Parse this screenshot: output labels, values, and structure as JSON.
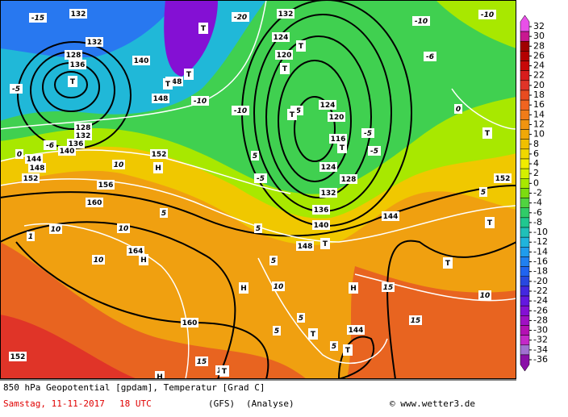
{
  "caption": {
    "line1": "850 hPa Geopotential [gpdam], Temperatur [Grad C]",
    "date": "Samstag, 11-11-2017",
    "time": "18 UTC",
    "model": "(GFS)",
    "run": "(Analyse)",
    "credit": "© www.wetter3.de"
  },
  "legend": {
    "ticks": [
      32,
      30,
      28,
      26,
      24,
      22,
      20,
      18,
      16,
      14,
      12,
      10,
      8,
      6,
      4,
      2,
      0,
      -2,
      -4,
      -6,
      -8,
      -10,
      -12,
      -14,
      -16,
      -18,
      -20,
      -22,
      -24,
      -26,
      -28,
      -30,
      -32,
      -34,
      -36
    ],
    "colors": [
      "#e850e8",
      "#c81890",
      "#a00000",
      "#b40000",
      "#c80808",
      "#d81c1c",
      "#e03428",
      "#e84c20",
      "#f06420",
      "#f07c18",
      "#f09410",
      "#f0a808",
      "#f0c000",
      "#f0d800",
      "#f0ec00",
      "#d4f000",
      "#a8e800",
      "#7cdc10",
      "#50d440",
      "#30cc68",
      "#20c890",
      "#20c0b8",
      "#20b4dc",
      "#209cec",
      "#2080f0",
      "#2064f0",
      "#2848e0",
      "#4428e0",
      "#6418e0",
      "#8410d4",
      "#a010c4",
      "#b410b4",
      "#c428c8",
      "#a070d0",
      "#8a10a8"
    ]
  },
  "map_labels": [
    {
      "text": "132",
      "kind": "pressure"
    },
    {
      "text": "132",
      "kind": "pressure"
    },
    {
      "text": "128",
      "kind": "pressure"
    },
    {
      "text": "136",
      "kind": "pressure"
    },
    {
      "text": "128",
      "kind": "pressure"
    },
    {
      "text": "132",
      "kind": "pressure"
    },
    {
      "text": "136",
      "kind": "pressure"
    },
    {
      "text": "140",
      "kind": "pressure"
    },
    {
      "text": "144",
      "kind": "pressure"
    },
    {
      "text": "148",
      "kind": "pressure"
    },
    {
      "text": "152",
      "kind": "pressure"
    },
    {
      "text": "152",
      "kind": "pressure"
    },
    {
      "text": "156",
      "kind": "pressure"
    },
    {
      "text": "160",
      "kind": "pressure"
    },
    {
      "text": "164",
      "kind": "pressure"
    },
    {
      "text": "160",
      "kind": "pressure"
    },
    {
      "text": "152",
      "kind": "pressure"
    },
    {
      "text": "140",
      "kind": "pressure"
    },
    {
      "text": "148",
      "kind": "pressure"
    },
    {
      "text": "148",
      "kind": "pressure"
    },
    {
      "text": "132",
      "kind": "pressure"
    },
    {
      "text": "124",
      "kind": "pressure"
    },
    {
      "text": "120",
      "kind": "pressure"
    },
    {
      "text": "124",
      "kind": "pressure"
    },
    {
      "text": "120",
      "kind": "pressure"
    },
    {
      "text": "116",
      "kind": "pressure"
    },
    {
      "text": "124",
      "kind": "pressure"
    },
    {
      "text": "128",
      "kind": "pressure"
    },
    {
      "text": "132",
      "kind": "pressure"
    },
    {
      "text": "136",
      "kind": "pressure"
    },
    {
      "text": "140",
      "kind": "pressure"
    },
    {
      "text": "148",
      "kind": "pressure"
    },
    {
      "text": "144",
      "kind": "pressure"
    },
    {
      "text": "144",
      "kind": "pressure"
    },
    {
      "text": "152",
      "kind": "pressure"
    },
    {
      "text": "-15",
      "kind": "temperature"
    },
    {
      "text": "-20",
      "kind": "temperature"
    },
    {
      "text": "-10",
      "kind": "temperature"
    },
    {
      "text": "-10",
      "kind": "temperature"
    },
    {
      "text": "-6",
      "kind": "temperature"
    },
    {
      "text": "-10",
      "kind": "temperature"
    },
    {
      "text": "-10",
      "kind": "temperature"
    },
    {
      "text": "-5",
      "kind": "temperature"
    },
    {
      "text": "-6",
      "kind": "temperature"
    },
    {
      "text": "0",
      "kind": "temperature"
    },
    {
      "text": "10",
      "kind": "temperature"
    },
    {
      "text": "5",
      "kind": "temperature"
    },
    {
      "text": "5",
      "kind": "temperature"
    },
    {
      "text": "-5",
      "kind": "temperature"
    },
    {
      "text": "-5",
      "kind": "temperature"
    },
    {
      "text": "-5",
      "kind": "temperature"
    },
    {
      "text": "-5",
      "kind": "temperature"
    },
    {
      "text": "0",
      "kind": "temperature"
    },
    {
      "text": "5",
      "kind": "temperature"
    },
    {
      "text": "10",
      "kind": "temperature"
    },
    {
      "text": "10",
      "kind": "temperature"
    },
    {
      "text": "5",
      "kind": "temperature"
    },
    {
      "text": "5",
      "kind": "temperature"
    },
    {
      "text": "10",
      "kind": "temperature"
    },
    {
      "text": "15",
      "kind": "temperature"
    },
    {
      "text": "10",
      "kind": "temperature"
    },
    {
      "text": "5",
      "kind": "temperature"
    },
    {
      "text": "5",
      "kind": "temperature"
    },
    {
      "text": "5",
      "kind": "temperature"
    },
    {
      "text": "15",
      "kind": "temperature"
    },
    {
      "text": "15",
      "kind": "temperature"
    },
    {
      "text": "15",
      "kind": "temperature"
    },
    {
      "text": "10",
      "kind": "temperature"
    },
    {
      "text": "1",
      "kind": "temperature"
    },
    {
      "text": "T",
      "kind": "center"
    },
    {
      "text": "T",
      "kind": "center"
    },
    {
      "text": "T",
      "kind": "center"
    },
    {
      "text": "T",
      "kind": "center"
    },
    {
      "text": "T",
      "kind": "center"
    },
    {
      "text": "T",
      "kind": "center"
    },
    {
      "text": "T",
      "kind": "center"
    },
    {
      "text": "T",
      "kind": "center"
    },
    {
      "text": "T",
      "kind": "center"
    },
    {
      "text": "T",
      "kind": "center"
    },
    {
      "text": "T",
      "kind": "center"
    },
    {
      "text": "T",
      "kind": "center"
    },
    {
      "text": "T",
      "kind": "center"
    },
    {
      "text": "T",
      "kind": "center"
    },
    {
      "text": "T",
      "kind": "center"
    },
    {
      "text": "H",
      "kind": "center"
    },
    {
      "text": "H",
      "kind": "center"
    },
    {
      "text": "H",
      "kind": "center"
    },
    {
      "text": "H",
      "kind": "center"
    },
    {
      "text": "H",
      "kind": "center"
    }
  ]
}
